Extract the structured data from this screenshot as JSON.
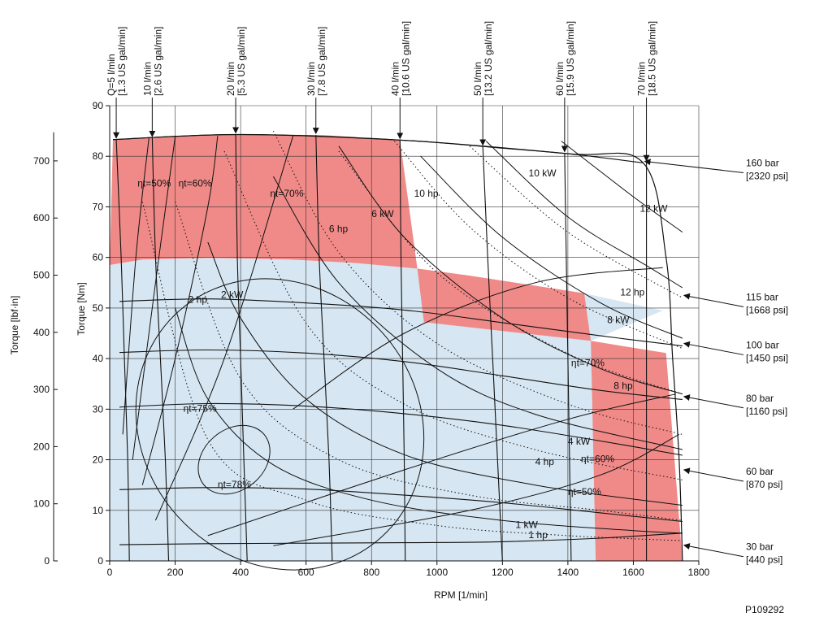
{
  "chart_data": {
    "type": "line",
    "xlabel": "RPM [1/min]",
    "ylabel": "Torque [Nm]",
    "y2label": "Torque [lbf·in]",
    "xlim": [
      0,
      1800
    ],
    "ylim": [
      0,
      90
    ],
    "y2lim": [
      0,
      796.6
    ],
    "x_ticks": [
      "0",
      "200",
      "400",
      "600",
      "800",
      "1000",
      "1200",
      "1400",
      "1600",
      "1800"
    ],
    "y_ticks": [
      "0",
      "10",
      "20",
      "30",
      "40",
      "50",
      "60",
      "70",
      "80",
      "90"
    ],
    "y2_ticks": [
      "0",
      "100",
      "200",
      "300",
      "400",
      "500",
      "600",
      "700"
    ],
    "grid": true,
    "figure_id": "P109292",
    "colors": {
      "intermittent": "#f08a88",
      "continuous": "#d6e6f2",
      "line": "#111111",
      "grid": "#333333"
    },
    "regions": {
      "continuous": [
        [
          0,
          0
        ],
        [
          0,
          58.5
        ],
        [
          100,
          59.6
        ],
        [
          300,
          59.9
        ],
        [
          550,
          59.6
        ],
        [
          750,
          58.9
        ],
        [
          940,
          57.8
        ],
        [
          1100,
          56.4
        ],
        [
          1300,
          54.4
        ],
        [
          1450,
          52.9
        ],
        [
          1690,
          49.5
        ],
        [
          1470,
          43.5
        ],
        [
          1485,
          0
        ]
      ],
      "intermittent_top": [
        [
          0,
          58.5
        ],
        [
          100,
          59.6
        ],
        [
          300,
          59.9
        ],
        [
          550,
          59.6
        ],
        [
          750,
          58.9
        ],
        [
          940,
          57.8
        ],
        [
          887,
          83.2
        ],
        [
          650,
          84.2
        ],
        [
          400,
          84.3
        ],
        [
          200,
          83.9
        ],
        [
          100,
          83.6
        ],
        [
          10,
          83.3
        ]
      ],
      "intermittent_mid": [
        [
          940,
          57.8
        ],
        [
          1100,
          56.4
        ],
        [
          1300,
          54.4
        ],
        [
          1450,
          52.9
        ],
        [
          1470,
          43.5
        ],
        [
          960,
          47.2
        ]
      ],
      "intermittent_right": [
        [
          1470,
          43.5
        ],
        [
          1700,
          41.1
        ],
        [
          1750,
          0
        ],
        [
          1485,
          0
        ]
      ]
    },
    "pressure_curves": [
      {
        "label": "30 bar",
        "label_psi": "[440 psi]",
        "y_at_arrow": 3.1,
        "points": [
          [
            30,
            3.2
          ],
          [
            300,
            3.4
          ],
          [
            600,
            3.5
          ],
          [
            900,
            3.6
          ],
          [
            1200,
            3.8
          ],
          [
            1500,
            4.5
          ],
          [
            1750,
            5.5
          ]
        ]
      },
      {
        "label": "60 bar",
        "label_psi": "[870 psi]",
        "y_at_arrow": 18.0,
        "points": [
          [
            30,
            14.1
          ],
          [
            300,
            14.5
          ],
          [
            600,
            14.2
          ],
          [
            900,
            13.0
          ],
          [
            1200,
            11.5
          ],
          [
            1500,
            9.5
          ],
          [
            1750,
            7.8
          ]
        ]
      },
      {
        "label": "80 bar",
        "label_psi": "[1160 psi]",
        "y_at_arrow": 32.5,
        "points": [
          [
            30,
            30.4
          ],
          [
            300,
            31.1
          ],
          [
            600,
            30.6
          ],
          [
            900,
            29.1
          ],
          [
            1200,
            26.8
          ],
          [
            1500,
            23.7
          ],
          [
            1750,
            20.9
          ]
        ]
      },
      {
        "label": "100 bar",
        "label_psi": "[1450 psi]",
        "y_at_arrow": 43.0,
        "points": [
          [
            30,
            41.2
          ],
          [
            300,
            41.7
          ],
          [
            600,
            41.1
          ],
          [
            900,
            39.4
          ],
          [
            1200,
            36.6
          ],
          [
            1500,
            33.7
          ],
          [
            1750,
            31.9
          ]
        ]
      },
      {
        "label": "115 bar",
        "label_psi": "[1668 psi]",
        "y_at_arrow": 52.5,
        "points": [
          [
            30,
            51.3
          ],
          [
            300,
            51.8
          ],
          [
            600,
            51.0
          ],
          [
            900,
            49.6
          ],
          [
            1200,
            47.1
          ],
          [
            1500,
            44.5
          ],
          [
            1750,
            42.5
          ]
        ]
      },
      {
        "label": "160 bar",
        "label_psi": "[2320 psi]",
        "y_at_arrow": 79.0,
        "points": [
          [
            10,
            83.3
          ],
          [
            400,
            84.3
          ],
          [
            887,
            83.2
          ],
          [
            1200,
            81.6
          ],
          [
            1400,
            80.5
          ],
          [
            1630,
            78.7
          ]
        ]
      }
    ],
    "flow_lines": [
      {
        "label": "Q=5 l/min",
        "label_us": "[1.3 US gal/min]",
        "rpm_top": 20,
        "points": [
          [
            20,
            83.3
          ],
          [
            35,
            60
          ],
          [
            45,
            40
          ],
          [
            55,
            20
          ],
          [
            60,
            0
          ]
        ]
      },
      {
        "label": "10 l/min",
        "label_us": "[2.6 US gal/min]",
        "rpm_top": 130,
        "points": [
          [
            130,
            83.6
          ],
          [
            140,
            60
          ],
          [
            155,
            40
          ],
          [
            170,
            20
          ],
          [
            180,
            0
          ]
        ]
      },
      {
        "label": "20 l/min",
        "label_us": "[5.3 US gal/min]",
        "rpm_top": 385,
        "points": [
          [
            385,
            84.3
          ],
          [
            390,
            60
          ],
          [
            400,
            40
          ],
          [
            410,
            20
          ],
          [
            420,
            0
          ]
        ]
      },
      {
        "label": "30 l/min",
        "label_us": "[7.8 US gal/min]",
        "rpm_top": 630,
        "points": [
          [
            630,
            84.2
          ],
          [
            640,
            60
          ],
          [
            655,
            40
          ],
          [
            670,
            20
          ],
          [
            680,
            0
          ]
        ]
      },
      {
        "label": "40 l/min",
        "label_us": "[10.6 US gal/min]",
        "rpm_top": 887,
        "points": [
          [
            887,
            83.2
          ],
          [
            890,
            60
          ],
          [
            895,
            40
          ],
          [
            900,
            20
          ],
          [
            903,
            0
          ]
        ]
      },
      {
        "label": "50 l/min",
        "label_us": "[13.2 US gal/min]",
        "rpm_top": 1140,
        "points": [
          [
            1140,
            81.9
          ],
          [
            1155,
            60
          ],
          [
            1170,
            40
          ],
          [
            1185,
            20
          ],
          [
            1200,
            0
          ]
        ]
      },
      {
        "label": "60 l/min",
        "label_us": "[15.9 US gal/min]",
        "rpm_top": 1390,
        "points": [
          [
            1390,
            80.6
          ],
          [
            1395,
            60
          ],
          [
            1400,
            40
          ],
          [
            1405,
            20
          ],
          [
            1410,
            0
          ]
        ]
      },
      {
        "label": "70 l/min",
        "label_us": "[18.5 US gal/min]",
        "rpm_top": 1640,
        "points": [
          [
            1640,
            78.8
          ],
          [
            1640,
            60
          ],
          [
            1640,
            40
          ],
          [
            1640,
            20
          ],
          [
            1640,
            0
          ]
        ]
      }
    ],
    "power_curves_kw": [
      {
        "label": "1 kW",
        "points": [
          [
            200,
            50
          ],
          [
            300,
            32
          ],
          [
            500,
            19
          ],
          [
            800,
            12
          ],
          [
            1200,
            8
          ],
          [
            1600,
            6
          ],
          [
            1750,
            5.5
          ]
        ]
      },
      {
        "label": "2 kW",
        "points": [
          [
            300,
            63
          ],
          [
            400,
            48
          ],
          [
            600,
            32
          ],
          [
            900,
            21
          ],
          [
            1300,
            15
          ],
          [
            1750,
            11
          ]
        ]
      },
      {
        "label": "4 kW",
        "points": [
          [
            500,
            76
          ],
          [
            700,
            55
          ],
          [
            1000,
            38
          ],
          [
            1300,
            29
          ],
          [
            1750,
            22
          ]
        ]
      },
      {
        "label": "6 kW",
        "points": [
          [
            700,
            82
          ],
          [
            900,
            64
          ],
          [
            1200,
            48
          ],
          [
            1500,
            38
          ],
          [
            1750,
            33
          ]
        ]
      },
      {
        "label": "8 kW",
        "points": [
          [
            950,
            80
          ],
          [
            1200,
            64
          ],
          [
            1500,
            51
          ],
          [
            1750,
            44
          ]
        ]
      },
      {
        "label": "10 kW",
        "points": [
          [
            1150,
            83
          ],
          [
            1400,
            68
          ],
          [
            1650,
            58
          ],
          [
            1750,
            54
          ]
        ]
      },
      {
        "label": "12 kW",
        "points": [
          [
            1380,
            83
          ],
          [
            1600,
            72
          ],
          [
            1750,
            65
          ]
        ]
      }
    ],
    "power_curves_hp": [
      {
        "label": "1 hp",
        "points": [
          [
            100,
            71
          ],
          [
            300,
            24
          ],
          [
            600,
            12
          ],
          [
            1000,
            7
          ],
          [
            1400,
            5
          ],
          [
            1750,
            4
          ]
        ]
      },
      {
        "label": "2 hp",
        "points": [
          [
            200,
            71
          ],
          [
            400,
            36
          ],
          [
            700,
            20
          ],
          [
            1100,
            13
          ],
          [
            1500,
            10
          ],
          [
            1750,
            8
          ]
        ]
      },
      {
        "label": "4 hp",
        "points": [
          [
            350,
            81
          ],
          [
            600,
            47
          ],
          [
            900,
            31
          ],
          [
            1300,
            22
          ],
          [
            1750,
            16
          ]
        ]
      },
      {
        "label": "6 hp",
        "points": [
          [
            500,
            85
          ],
          [
            700,
            61
          ],
          [
            1000,
            43
          ],
          [
            1400,
            31
          ],
          [
            1750,
            25
          ]
        ]
      },
      {
        "label": "8 hp",
        "points": [
          [
            700,
            81
          ],
          [
            1000,
            57
          ],
          [
            1400,
            41
          ],
          [
            1750,
            33
          ]
        ]
      },
      {
        "label": "10 hp",
        "points": [
          [
            870,
            83
          ],
          [
            1100,
            66
          ],
          [
            1400,
            52
          ],
          [
            1750,
            42
          ]
        ]
      },
      {
        "label": "12 hp",
        "points": [
          [
            1100,
            82
          ],
          [
            1400,
            65
          ],
          [
            1750,
            52
          ]
        ]
      }
    ],
    "efficiency_contours": [
      {
        "label": "ηt=50%",
        "type": "fan"
      },
      {
        "label": "ηt=60%",
        "type": "fan"
      },
      {
        "label": "ηt=70%",
        "type": "fan"
      },
      {
        "label": "ηt=75%",
        "type": "ellipse",
        "center": [
          520,
          27
        ],
        "rx_rpm": 420,
        "ry_nm": 30
      },
      {
        "label": "ηt=78%",
        "type": "ellipse",
        "center": [
          380,
          20
        ],
        "rx_rpm": 120,
        "ry_nm": 6
      }
    ],
    "annotations": [
      {
        "text": "ηt=50%",
        "x": 85,
        "y": 74
      },
      {
        "text": "ηt=60%",
        "x": 210,
        "y": 74
      },
      {
        "text": "ηt=70%",
        "x": 490,
        "y": 72
      },
      {
        "text": "6 hp",
        "x": 670,
        "y": 65
      },
      {
        "text": "6 kW",
        "x": 800,
        "y": 68
      },
      {
        "text": "10 hp",
        "x": 930,
        "y": 72
      },
      {
        "text": "10 kW",
        "x": 1280,
        "y": 76
      },
      {
        "text": "12 kW",
        "x": 1620,
        "y": 69
      },
      {
        "text": "12 hp",
        "x": 1560,
        "y": 52.5
      },
      {
        "text": "8 kW",
        "x": 1520,
        "y": 47
      },
      {
        "text": "2 hp",
        "x": 240,
        "y": 51
      },
      {
        "text": "2 kW",
        "x": 340,
        "y": 52
      },
      {
        "text": "ηt=70%",
        "x": 1410,
        "y": 38.5
      },
      {
        "text": "8 hp",
        "x": 1540,
        "y": 34
      },
      {
        "text": "ηt=75%",
        "x": 225,
        "y": 29.5
      },
      {
        "text": "4 kW",
        "x": 1400,
        "y": 23
      },
      {
        "text": "4 hp",
        "x": 1300,
        "y": 19
      },
      {
        "text": "ηt=60%",
        "x": 1440,
        "y": 19.5
      },
      {
        "text": "ηt=78%",
        "x": 330,
        "y": 14.5
      },
      {
        "text": "ηt=50%",
        "x": 1400,
        "y": 13
      },
      {
        "text": "1 kW",
        "x": 1240,
        "y": 6.5
      },
      {
        "text": "1 hp",
        "x": 1280,
        "y": 4.5
      }
    ]
  }
}
